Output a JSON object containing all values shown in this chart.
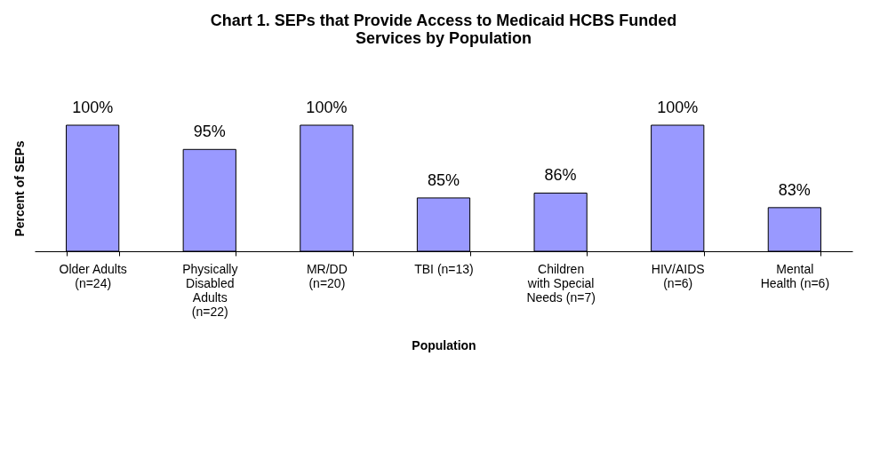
{
  "chart_data": {
    "type": "bar",
    "title": "Chart 1. SEPs that Provide Access to Medicaid HCBS Funded\nServices by Population",
    "xlabel": "Population",
    "ylabel": "Percent of SEPs",
    "categories": [
      "Older Adults\n(n=24)",
      "Physically\nDisabled\nAdults\n(n=22)",
      "MR/DD\n(n=20)",
      "TBI (n=13)",
      "Children\nwith Special\nNeeds (n=7)",
      "HIV/AIDS\n(n=6)",
      "Mental\nHealth (n=6)"
    ],
    "values": [
      100,
      95,
      100,
      85,
      86,
      100,
      83
    ],
    "value_labels": [
      "100%",
      "95%",
      "100%",
      "85%",
      "86%",
      "100%",
      "83%"
    ],
    "color": "#9999ff",
    "ylim": [
      74,
      100
    ],
    "tick_labels": "x",
    "grid": false
  }
}
